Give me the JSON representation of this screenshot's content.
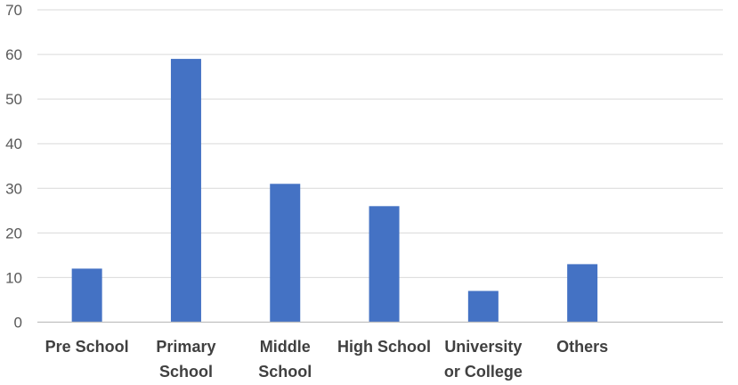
{
  "chart_data": {
    "type": "bar",
    "title": "",
    "xlabel": "",
    "ylabel": "",
    "categories": [
      [
        "Pre School"
      ],
      [
        "Primary",
        "School"
      ],
      [
        "Middle",
        "School"
      ],
      [
        "High School"
      ],
      [
        "University",
        "or College"
      ],
      [
        "Others"
      ]
    ],
    "values": [
      12,
      59,
      31,
      26,
      7,
      13
    ],
    "ylim": [
      0,
      70
    ],
    "yticks": [
      0,
      10,
      20,
      30,
      40,
      50,
      60,
      70
    ],
    "grid": true,
    "legend": "none",
    "bar_color": "#4472c4",
    "grid_color": "#d9d9d9"
  }
}
